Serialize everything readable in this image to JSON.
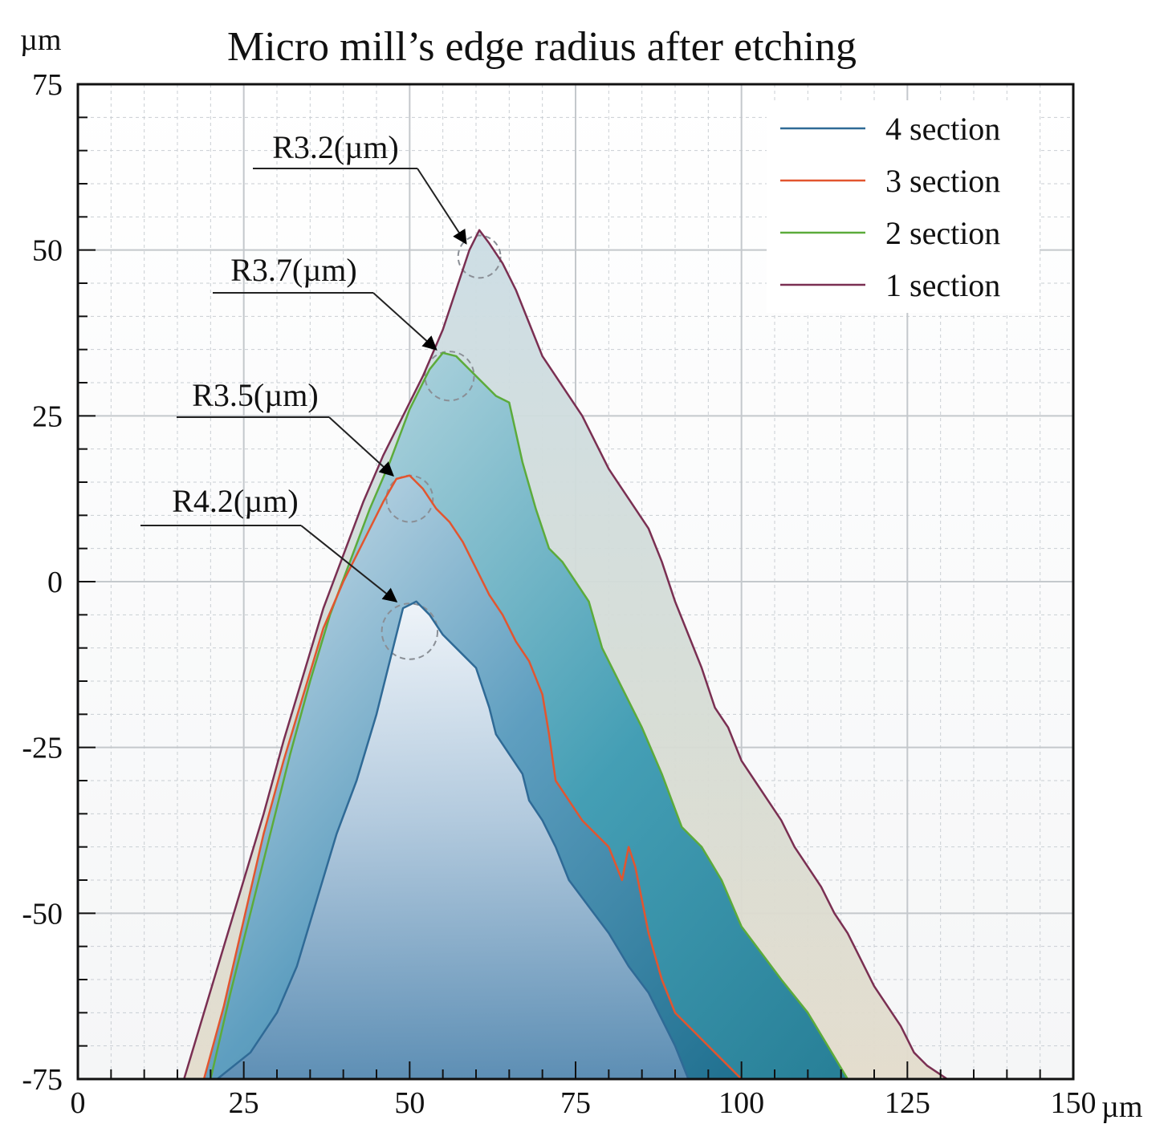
{
  "chart_data": {
    "type": "area",
    "title": "Micro mill’s edge radius after etching",
    "xlabel": "µm",
    "ylabel": "µm",
    "xlim": [
      0,
      150
    ],
    "ylim": [
      -75,
      75
    ],
    "xticks": [
      0,
      25,
      50,
      75,
      100,
      125,
      150
    ],
    "yticks": [
      75,
      50,
      25,
      0,
      -25,
      -50,
      -75
    ],
    "xtick_labels": [
      "0",
      "25",
      "50",
      "75",
      "100",
      "125",
      "150"
    ],
    "ytick_labels": [
      "75",
      "50",
      "25",
      "0",
      "-25",
      "-50",
      "-75"
    ],
    "legend_position": "top-right",
    "grid": true,
    "series": [
      {
        "name": "4 section",
        "color": "#2f6a96",
        "fill": "#4fb5c2",
        "points": [
          [
            21,
            -75
          ],
          [
            26,
            -71
          ],
          [
            30,
            -65
          ],
          [
            33,
            -58
          ],
          [
            36,
            -48
          ],
          [
            39,
            -38
          ],
          [
            42,
            -30
          ],
          [
            45,
            -20
          ],
          [
            47,
            -12
          ],
          [
            49,
            -4
          ],
          [
            51,
            -3
          ],
          [
            53,
            -5
          ],
          [
            55,
            -8
          ],
          [
            58,
            -11
          ],
          [
            60,
            -13
          ],
          [
            62,
            -19
          ],
          [
            63,
            -23
          ],
          [
            65,
            -26
          ],
          [
            67,
            -29
          ],
          [
            68,
            -33
          ],
          [
            70,
            -36
          ],
          [
            72,
            -40
          ],
          [
            74,
            -45
          ],
          [
            77,
            -49
          ],
          [
            80,
            -53
          ],
          [
            83,
            -58
          ],
          [
            86,
            -62
          ],
          [
            88,
            -66
          ],
          [
            90,
            -70
          ],
          [
            92,
            -75
          ]
        ]
      },
      {
        "name": "3 section",
        "color": "#e2552f",
        "fill": "#1f7f96",
        "points": [
          [
            19,
            -75
          ],
          [
            22,
            -64
          ],
          [
            25,
            -51
          ],
          [
            28,
            -38
          ],
          [
            31,
            -27
          ],
          [
            34,
            -17
          ],
          [
            37,
            -7
          ],
          [
            40,
            0
          ],
          [
            43,
            6
          ],
          [
            46,
            12
          ],
          [
            48,
            15.5
          ],
          [
            50,
            16
          ],
          [
            52,
            14
          ],
          [
            54,
            11
          ],
          [
            56,
            9
          ],
          [
            58,
            6
          ],
          [
            60,
            2
          ],
          [
            62,
            -2
          ],
          [
            64,
            -5
          ],
          [
            66,
            -9
          ],
          [
            68,
            -12
          ],
          [
            70,
            -17
          ],
          [
            71,
            -23
          ],
          [
            72,
            -30
          ],
          [
            74,
            -33
          ],
          [
            76,
            -36
          ],
          [
            78,
            -38
          ],
          [
            80,
            -40
          ],
          [
            82,
            -45
          ],
          [
            83,
            -40
          ],
          [
            84,
            -43
          ],
          [
            86,
            -53
          ],
          [
            88,
            -60
          ],
          [
            90,
            -65
          ],
          [
            93,
            -68
          ],
          [
            96,
            -71
          ],
          [
            100,
            -75
          ]
        ]
      },
      {
        "name": "2 section",
        "color": "#5cab3b",
        "fill": "#2b7ea0",
        "points": [
          [
            20,
            -75
          ],
          [
            23,
            -62
          ],
          [
            26,
            -50
          ],
          [
            29,
            -38
          ],
          [
            32,
            -26
          ],
          [
            35,
            -15
          ],
          [
            38,
            -5
          ],
          [
            41,
            3
          ],
          [
            44,
            11
          ],
          [
            47,
            18
          ],
          [
            50,
            26
          ],
          [
            53,
            32
          ],
          [
            55,
            34.5
          ],
          [
            57,
            34
          ],
          [
            59,
            32
          ],
          [
            61,
            30
          ],
          [
            63,
            28
          ],
          [
            65,
            27
          ],
          [
            67,
            18
          ],
          [
            69,
            11
          ],
          [
            71,
            5
          ],
          [
            73,
            3
          ],
          [
            75,
            0
          ],
          [
            77,
            -3
          ],
          [
            79,
            -10
          ],
          [
            82,
            -16
          ],
          [
            85,
            -22
          ],
          [
            88,
            -29
          ],
          [
            91,
            -37
          ],
          [
            94,
            -40
          ],
          [
            97,
            -45
          ],
          [
            100,
            -52
          ],
          [
            103,
            -56
          ],
          [
            106,
            -60
          ],
          [
            110,
            -65
          ],
          [
            113,
            -70
          ],
          [
            116,
            -75
          ]
        ]
      },
      {
        "name": "1 section",
        "color": "#7a2f52",
        "fill": "#9fbcd2",
        "points": [
          [
            16,
            -75
          ],
          [
            19,
            -65
          ],
          [
            22,
            -55
          ],
          [
            25,
            -45
          ],
          [
            28,
            -35
          ],
          [
            31,
            -24
          ],
          [
            34,
            -14
          ],
          [
            37,
            -4
          ],
          [
            40,
            4
          ],
          [
            43,
            12
          ],
          [
            46,
            19
          ],
          [
            49,
            25
          ],
          [
            52,
            31
          ],
          [
            55,
            38
          ],
          [
            57,
            44
          ],
          [
            59,
            50
          ],
          [
            60.5,
            53
          ],
          [
            62,
            51
          ],
          [
            64,
            48
          ],
          [
            66,
            44
          ],
          [
            68,
            39
          ],
          [
            70,
            34
          ],
          [
            72,
            31
          ],
          [
            74,
            28
          ],
          [
            76,
            25
          ],
          [
            78,
            21
          ],
          [
            80,
            17
          ],
          [
            82,
            14
          ],
          [
            84,
            11
          ],
          [
            86,
            8
          ],
          [
            88,
            3
          ],
          [
            90,
            -3
          ],
          [
            92,
            -8
          ],
          [
            94,
            -13
          ],
          [
            96,
            -19
          ],
          [
            98,
            -22
          ],
          [
            100,
            -27
          ],
          [
            102,
            -30
          ],
          [
            104,
            -33
          ],
          [
            106,
            -36
          ],
          [
            108,
            -40
          ],
          [
            110,
            -43
          ],
          [
            112,
            -46
          ],
          [
            114,
            -50
          ],
          [
            116,
            -53
          ],
          [
            118,
            -57
          ],
          [
            120,
            -61
          ],
          [
            122,
            -64
          ],
          [
            124,
            -67
          ],
          [
            126,
            -71
          ],
          [
            128,
            -73
          ],
          [
            131,
            -75
          ]
        ]
      }
    ],
    "annotations": [
      {
        "text": "R3.2(µm)",
        "target": [
          58.5,
          51
        ]
      },
      {
        "text": "R3.7(µm)",
        "target": [
          54,
          35
        ]
      },
      {
        "text": "R3.5(µm)",
        "target": [
          47.5,
          16
        ]
      },
      {
        "text": "R4.2(µm)",
        "target": [
          48,
          -3
        ]
      }
    ],
    "radius_circles": [
      {
        "series": "1 section",
        "center": [
          60.5,
          49
        ],
        "radius": 3.2
      },
      {
        "series": "2 section",
        "center": [
          56,
          31
        ],
        "radius": 3.7
      },
      {
        "series": "3 section",
        "center": [
          50,
          12.5
        ],
        "radius": 3.5
      },
      {
        "series": "4 section",
        "center": [
          50,
          -7.5
        ],
        "radius": 4.2
      }
    ]
  }
}
